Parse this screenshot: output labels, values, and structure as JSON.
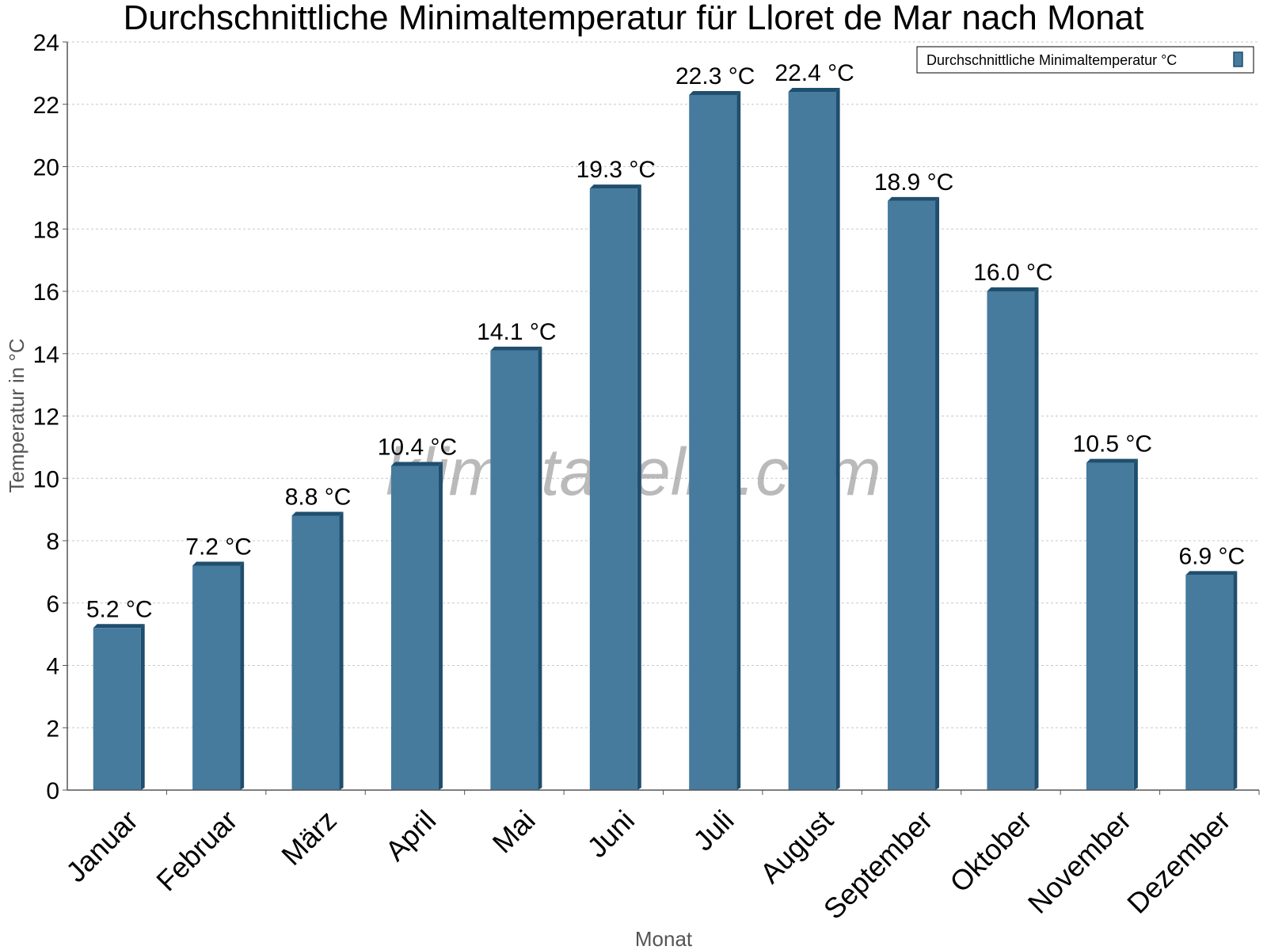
{
  "chart_data": {
    "type": "bar",
    "title": "Durchschnittliche Minimaltemperatur für Lloret de Mar nach Monat",
    "xlabel": "Monat",
    "ylabel": "Temperatur in °C",
    "categories": [
      "Januar",
      "Februar",
      "März",
      "April",
      "Mai",
      "Juni",
      "Juli",
      "August",
      "September",
      "Oktober",
      "November",
      "Dezember"
    ],
    "series": [
      {
        "name": "Durchschnittliche Minimaltemperatur °C",
        "values": [
          5.2,
          7.2,
          8.8,
          10.4,
          14.1,
          19.3,
          22.3,
          22.4,
          18.9,
          16.0,
          10.5,
          6.9
        ],
        "labels": [
          "5.2 °C",
          "7.2 °C",
          "8.8 °C",
          "10.4 °C",
          "14.1 °C",
          "19.3 °C",
          "22.3 °C",
          "22.4 °C",
          "18.9 °C",
          "16.0 °C",
          "10.5 °C",
          "6.9 °C"
        ]
      }
    ],
    "ylim": [
      0,
      24
    ],
    "yticks": [
      0,
      2,
      4,
      6,
      8,
      10,
      12,
      14,
      16,
      18,
      20,
      22,
      24
    ],
    "grid": true,
    "legend_position": "top-right",
    "colors": {
      "bar": "#467b9e",
      "bar_side": "#1f4e6e",
      "grid": "#c8c8c8",
      "axis": "#555555"
    }
  },
  "watermark": "klimatabelle.com"
}
